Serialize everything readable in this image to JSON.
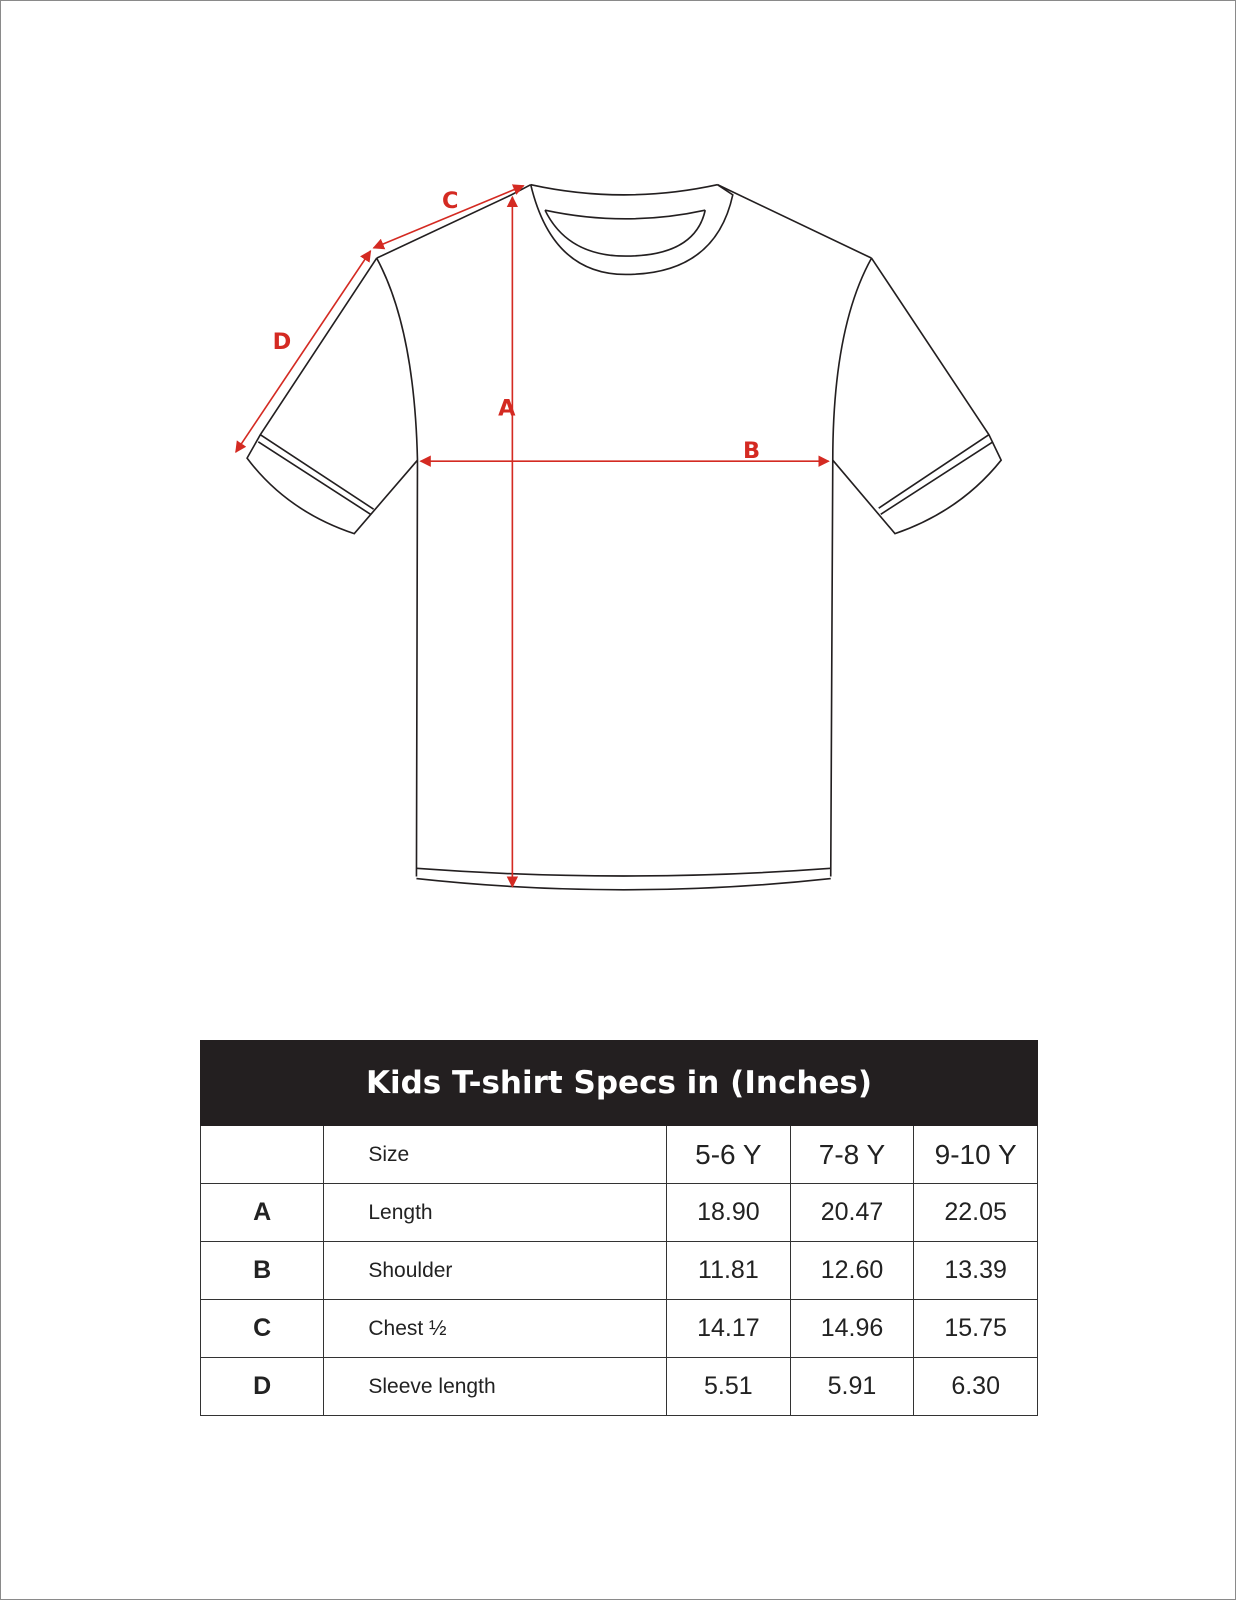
{
  "diagram": {
    "labels": {
      "A": "A",
      "B": "B",
      "C": "C",
      "D": "D"
    },
    "arrow_color": "#d42a22",
    "outline_color": "#231f20"
  },
  "table": {
    "title": "Kids T-shirt  Specs in   (Inches)",
    "header": {
      "code": "",
      "name": "Size",
      "sizes": [
        "5-6 Y",
        "7-8 Y",
        "9-10 Y"
      ]
    },
    "rows": [
      {
        "code": "A",
        "name": "Length",
        "values": [
          "18.90",
          "20.47",
          "22.05"
        ]
      },
      {
        "code": "B",
        "name": "Shoulder",
        "values": [
          "11.81",
          "12.60",
          "13.39"
        ]
      },
      {
        "code": "C",
        "name": "Chest ½",
        "values": [
          "14.17",
          "14.96",
          "15.75"
        ]
      },
      {
        "code": "D",
        "name": "Sleeve length",
        "values": [
          "5.51",
          "5.91",
          "6.30"
        ]
      }
    ]
  }
}
